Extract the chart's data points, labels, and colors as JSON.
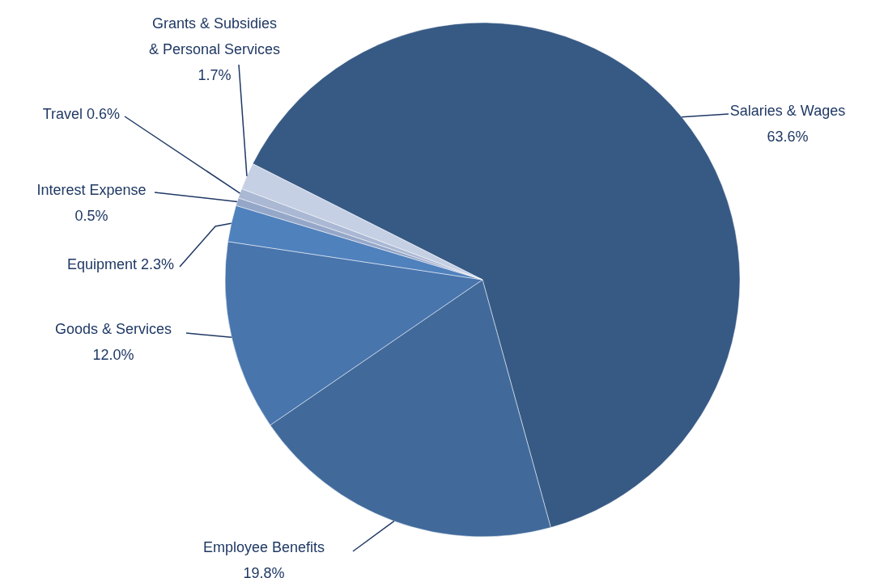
{
  "chart_data": {
    "type": "pie",
    "categories": [
      "Salaries & Wages",
      "Employee Benefits",
      "Goods & Services",
      "Equipment",
      "Interest Expense",
      "Travel",
      "Grants & Subsidies & Personal Services"
    ],
    "values": [
      63.6,
      19.8,
      12.0,
      2.3,
      0.5,
      0.6,
      1.7
    ],
    "value_labels": [
      "63.6%",
      "19.8%",
      "12.0%",
      "2.3%",
      "0.5%",
      "0.6%",
      "1.7%"
    ],
    "colors": [
      "#375a85",
      "#416a9b",
      "#4975ad",
      "#4f81bd",
      "#95a7c9",
      "#aab8d4",
      "#c6d0e4"
    ],
    "legend": false
  }
}
